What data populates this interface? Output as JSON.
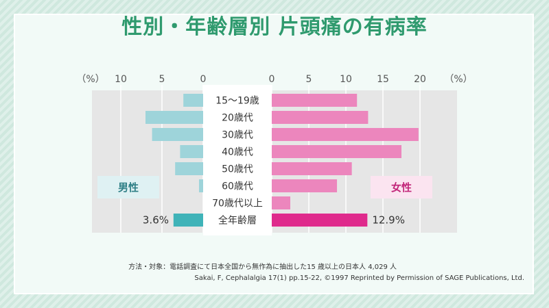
{
  "title": "性別・年齢層別 片頭痛の有病率",
  "colors": {
    "male": "#9ed4da",
    "male_total": "#3fb3b8",
    "female": "#ec86bd",
    "female_total": "#df2a8c",
    "male_label_bg": "#dff1f3",
    "female_label_bg": "#fbe4f0"
  },
  "chart_data": {
    "type": "bar",
    "orientation": "horizontal-butterfly",
    "categories": [
      "15〜19歳",
      "20歳代",
      "30歳代",
      "40歳代",
      "50歳代",
      "60歳代",
      "70歳代以上",
      "全年齢層"
    ],
    "series": [
      {
        "name": "男性",
        "values": [
          2.4,
          7.0,
          6.2,
          2.8,
          3.4,
          0.5,
          0.0,
          3.6
        ]
      },
      {
        "name": "女性",
        "values": [
          11.5,
          13.0,
          19.8,
          17.5,
          10.8,
          8.8,
          2.5,
          12.9
        ]
      }
    ],
    "male_axis": {
      "ticks": [
        "10",
        "5",
        "0"
      ],
      "tick_values": [
        10,
        5,
        0
      ],
      "unit": "（%）",
      "xlim": [
        0,
        13.5
      ]
    },
    "female_axis": {
      "ticks": [
        "0",
        "5",
        "10",
        "15",
        "20"
      ],
      "tick_values": [
        0,
        5,
        10,
        15,
        20
      ],
      "unit": "（%）",
      "xlim": [
        0,
        25
      ]
    },
    "data_labels": {
      "male_total": "3.6%",
      "female_total": "12.9%"
    },
    "grid": true
  },
  "notes": {
    "method": "方法・対象：電話調査にて日本全国から無作為に抽出した15 歳以上の日本人 4,029 人",
    "source": "Sakai, F, Cephalalgia 17(1) pp.15-22, ©1997 Reprinted by Permission of SAGE Publications, Ltd."
  }
}
